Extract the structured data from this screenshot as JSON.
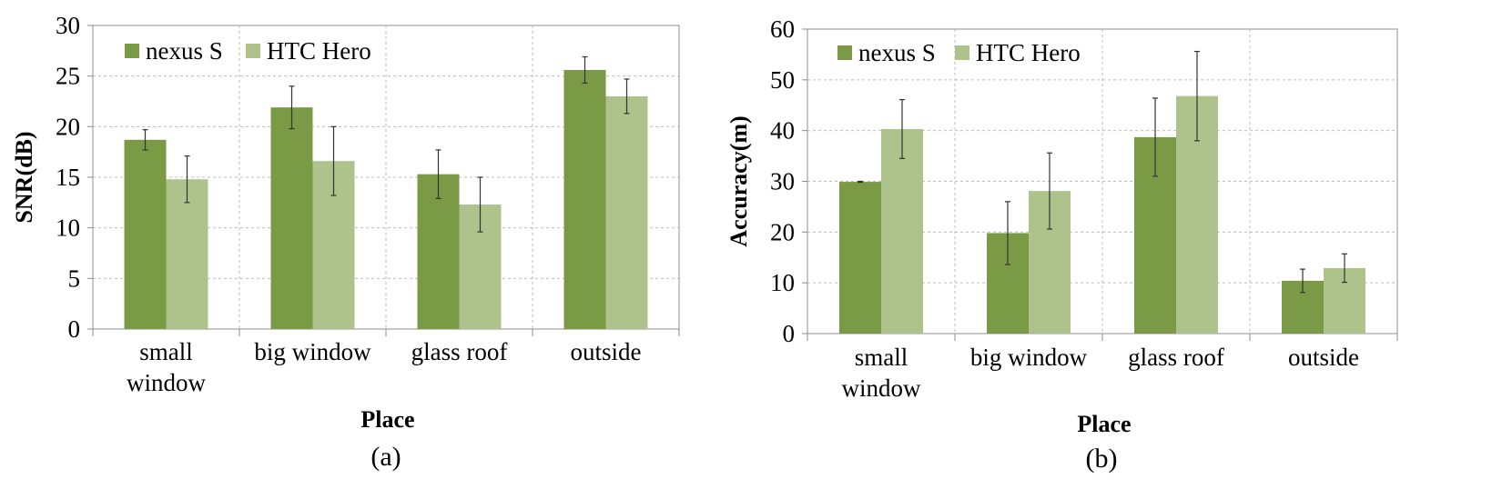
{
  "chart_data": [
    {
      "type": "bar",
      "caption": "(a)",
      "xlabel": "Place",
      "ylabel": "SNR(dB)",
      "ylim": [
        0,
        30
      ],
      "ytick_step": 5,
      "yticks": [
        "0",
        "5",
        "10",
        "15",
        "20",
        "25",
        "30"
      ],
      "grid": true,
      "legend_position": "top-left",
      "categories": [
        [
          "small",
          "window"
        ],
        [
          "big window"
        ],
        [
          "glass roof"
        ],
        [
          "outside"
        ]
      ],
      "series": [
        {
          "name": "nexus S",
          "color": "#7b9a46",
          "values": [
            18.7,
            21.9,
            15.3,
            25.6
          ],
          "error": [
            1.0,
            2.1,
            2.4,
            1.3
          ]
        },
        {
          "name": "HTC Hero",
          "color": "#aec28c",
          "values": [
            14.8,
            16.6,
            12.3,
            23.0
          ],
          "error": [
            2.3,
            3.4,
            2.7,
            1.7
          ]
        }
      ]
    },
    {
      "type": "bar",
      "caption": "(b)",
      "xlabel": "Place",
      "ylabel": "Accuracy(m)",
      "ylim": [
        0,
        60
      ],
      "ytick_step": 10,
      "yticks": [
        "0",
        "10",
        "20",
        "30",
        "40",
        "50",
        "60"
      ],
      "grid": true,
      "legend_position": "top-left",
      "categories": [
        [
          "small",
          "window"
        ],
        [
          "big window"
        ],
        [
          "glass roof"
        ],
        [
          "outside"
        ]
      ],
      "series": [
        {
          "name": "nexus S",
          "color": "#7b9a46",
          "values": [
            29.9,
            19.8,
            38.7,
            10.4
          ],
          "error": [
            0.1,
            6.2,
            7.7,
            2.3
          ]
        },
        {
          "name": "HTC Hero",
          "color": "#aec28c",
          "values": [
            40.3,
            28.1,
            46.8,
            12.9
          ],
          "error": [
            5.8,
            7.5,
            8.8,
            2.8
          ]
        }
      ]
    }
  ]
}
